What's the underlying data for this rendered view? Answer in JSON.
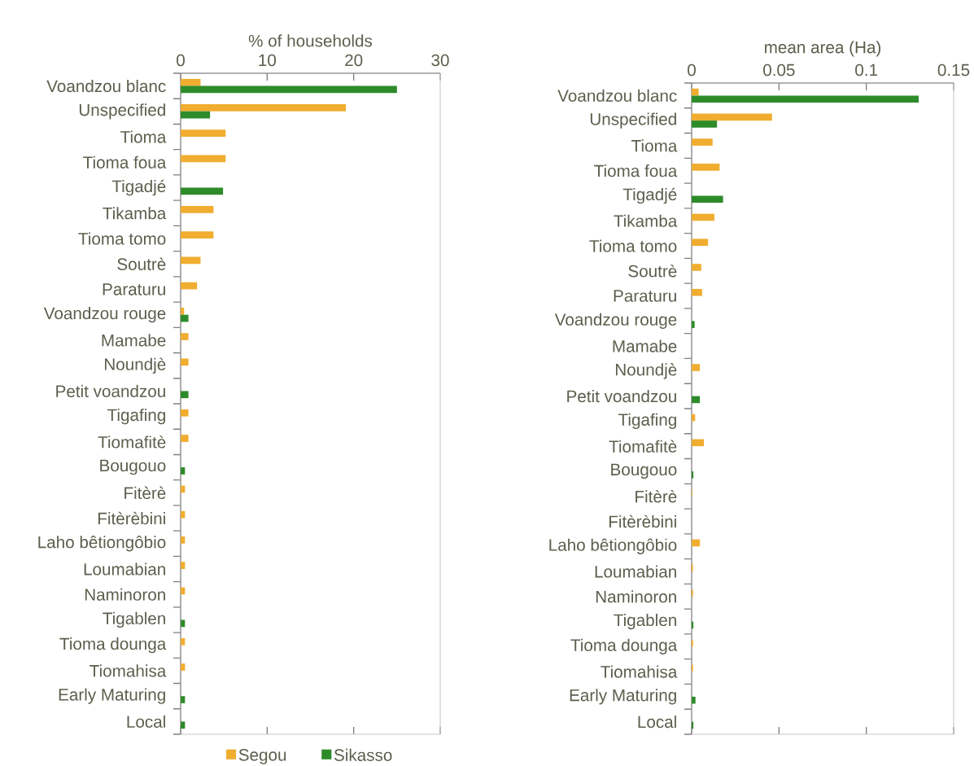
{
  "chart_data": [
    {
      "type": "bar",
      "orientation": "horizontal",
      "xlabel": "% of households",
      "categories": [
        "Voandzou blanc",
        "Unspecified",
        "Tioma",
        "Tioma foua",
        "Tigadjé",
        "Tikamba",
        "Tioma tomo",
        "Soutrè",
        "Paraturu",
        "Voandzou rouge",
        "Mamabe",
        "Noundjè",
        "Petit voandzou",
        "Tigafing",
        "Tiomafitè",
        "Bougouo",
        "Fitèrè",
        "Fitèrèbini",
        "Laho bêtiongôbio",
        "Loumabian",
        "Naminoron",
        "Tigablen",
        "Tioma dounga",
        "Tiomahisa",
        "Early Maturing",
        "Local"
      ],
      "series": [
        {
          "name": "Segou",
          "color": "#f0ad30",
          "values": [
            2.3,
            19.1,
            5.2,
            5.2,
            null,
            3.8,
            3.8,
            2.3,
            1.9,
            0.4,
            0.9,
            0.9,
            null,
            0.9,
            0.9,
            null,
            0.5,
            0.5,
            0.5,
            0.5,
            0.5,
            null,
            0.5,
            0.5,
            null,
            null
          ]
        },
        {
          "name": "Sikasso",
          "color": "#2e8b2a",
          "values": [
            25.0,
            3.4,
            null,
            null,
            4.9,
            null,
            null,
            null,
            null,
            0.9,
            null,
            null,
            0.9,
            null,
            null,
            0.5,
            null,
            null,
            null,
            null,
            null,
            0.5,
            null,
            null,
            0.5,
            0.5
          ]
        }
      ],
      "xlim": [
        0,
        30
      ],
      "xticks": [
        0,
        10,
        20,
        30
      ],
      "legend": "bottom"
    },
    {
      "type": "bar",
      "orientation": "horizontal",
      "xlabel": "mean area (Ha)",
      "categories": [
        "Voandzou blanc",
        "Unspecified",
        "Tioma",
        "Tioma foua",
        "Tigadjé",
        "Tikamba",
        "Tioma tomo",
        "Soutrè",
        "Paraturu",
        "Voandzou rouge",
        "Mamabe",
        "Noundjè",
        "Petit voandzou",
        "Tigafing",
        "Tiomafitè",
        "Bougouo",
        "Fitèrè",
        "Fitèrèbini",
        "Laho bêtiongôbio",
        "Loumabian",
        "Naminoron",
        "Tigablen",
        "Tioma dounga",
        "Tiomahisa",
        "Early Maturing",
        "Local"
      ],
      "series": [
        {
          "color": "#f0ad30",
          "values": [
            0.004,
            0.046,
            0.012,
            0.016,
            null,
            0.013,
            0.0094,
            0.0055,
            0.006,
            null,
            null,
            0.0047,
            null,
            0.002,
            0.007,
            null,
            0.0003,
            null,
            0.0047,
            0.0008,
            0.0008,
            null,
            0.0008,
            0.0008,
            null,
            null
          ]
        },
        {
          "color": "#2e8b2a",
          "values": [
            0.13,
            0.0145,
            null,
            null,
            0.018,
            null,
            null,
            null,
            null,
            0.0017,
            null,
            null,
            0.0047,
            null,
            null,
            0.001,
            null,
            null,
            null,
            null,
            null,
            0.001,
            null,
            null,
            0.0022,
            0.001
          ]
        }
      ],
      "xlim": [
        0,
        0.15
      ],
      "xticks": [
        0,
        0.05,
        0.1,
        0.15
      ]
    }
  ]
}
